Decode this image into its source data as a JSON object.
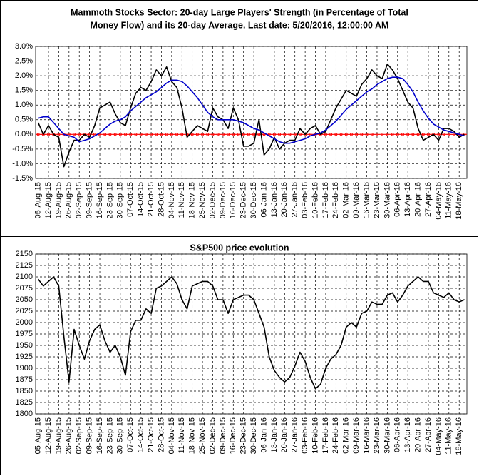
{
  "chart_data": [
    {
      "type": "line",
      "title_lines": [
        "Mammoth Stocks Sector: 20-day Large Players' Strength (in Percentage of Total",
        "Money Flow) and its 20-day Average. Last date: 5/20/2016, 12:00:00 AM"
      ],
      "categories": [
        "05-Aug-15",
        null,
        "12-Aug-15",
        null,
        "19-Aug-15",
        null,
        "26-Aug-15",
        null,
        "02-Sep-15",
        null,
        "09-Sep-15",
        null,
        "16-Sep-15",
        null,
        "23-Sep-15",
        null,
        "30-Sep-15",
        null,
        "07-Oct-15",
        null,
        "14-Oct-15",
        null,
        "21-Oct-15",
        null,
        "28-Oct-15",
        null,
        "04-Nov-15",
        null,
        "11-Nov-15",
        null,
        "18-Nov-15",
        null,
        "25-Nov-15",
        null,
        "02-Dec-15",
        null,
        "09-Dec-15",
        null,
        "16-Dec-15",
        null,
        "23-Dec-15",
        null,
        "30-Dec-15",
        null,
        "06-Jan-16",
        null,
        "13-Jan-16",
        null,
        "20-Jan-16",
        null,
        "27-Jan-16",
        null,
        "03-Feb-16",
        null,
        "10-Feb-16",
        null,
        "17-Feb-16",
        null,
        "24-Feb-16",
        null,
        "02-Mar-16",
        null,
        "09-Mar-16",
        null,
        "16-Mar-16",
        null,
        "23-Mar-16",
        null,
        "30-Mar-16",
        null,
        "06-Apr-16",
        null,
        "13-Apr-16",
        null,
        "20-Apr-16",
        null,
        "27-Apr-16",
        null,
        "04-May-16",
        null,
        "11-May-16",
        null,
        "18-May-16",
        null
      ],
      "series": [
        {
          "color": "#000000",
          "values": [
            0.4,
            0.0,
            0.3,
            0.0,
            -0.1,
            -1.1,
            -0.6,
            -0.2,
            -0.2,
            0.0,
            -0.1,
            0.3,
            0.9,
            1.0,
            1.1,
            0.7,
            0.4,
            0.3,
            0.9,
            1.4,
            1.6,
            1.5,
            1.8,
            2.2,
            2.0,
            2.3,
            1.8,
            1.6,
            0.9,
            -0.1,
            0.1,
            0.3,
            0.2,
            0.1,
            0.9,
            0.6,
            0.5,
            0.2,
            0.9,
            0.5,
            -0.4,
            -0.4,
            -0.3,
            0.5,
            -0.7,
            -0.5,
            -0.1,
            -0.5,
            -0.3,
            -0.2,
            -0.2,
            0.2,
            0.0,
            0.2,
            0.3,
            0.0,
            0.1,
            0.5,
            0.9,
            1.2,
            1.5,
            1.4,
            1.3,
            1.7,
            1.9,
            2.2,
            2.0,
            1.9,
            2.4,
            2.2,
            1.9,
            1.5,
            1.1,
            0.9,
            0.2,
            -0.2,
            -0.1,
            0.0,
            -0.2,
            0.2,
            0.2,
            0.1,
            -0.1,
            0.0
          ]
        },
        {
          "color": "#0000cc",
          "values": [
            0.55,
            0.6,
            0.6,
            0.4,
            0.2,
            0.0,
            -0.05,
            -0.1,
            -0.25,
            -0.2,
            -0.15,
            -0.05,
            0.05,
            0.2,
            0.35,
            0.45,
            0.5,
            0.6,
            0.8,
            0.95,
            1.1,
            1.25,
            1.35,
            1.45,
            1.6,
            1.75,
            1.85,
            1.85,
            1.8,
            1.65,
            1.45,
            1.25,
            1.0,
            0.75,
            0.6,
            0.5,
            0.5,
            0.5,
            0.5,
            0.45,
            0.4,
            0.3,
            0.2,
            0.15,
            0.05,
            -0.05,
            -0.15,
            -0.25,
            -0.3,
            -0.3,
            -0.25,
            -0.2,
            -0.15,
            -0.05,
            0.0,
            0.05,
            0.15,
            0.3,
            0.45,
            0.65,
            0.85,
            1.0,
            1.15,
            1.3,
            1.45,
            1.55,
            1.7,
            1.8,
            1.9,
            1.95,
            1.95,
            1.9,
            1.7,
            1.45,
            1.1,
            0.8,
            0.55,
            0.35,
            0.25,
            0.15,
            0.1,
            0.05,
            0.0,
            -0.05
          ]
        }
      ],
      "reference_line": {
        "value": 0,
        "color": "#ff0000"
      },
      "ylim": [
        -1.5,
        3.0
      ],
      "yticks": [
        {
          "value": -1.5,
          "label": "-1.5%"
        },
        {
          "value": -1.0,
          "label": "-1.0%"
        },
        {
          "value": -0.5,
          "label": "-0.5%"
        },
        {
          "value": 0.0,
          "label": "0.0%"
        },
        {
          "value": 0.5,
          "label": "0.5%"
        },
        {
          "value": 1.0,
          "label": "1.0%"
        },
        {
          "value": 1.5,
          "label": "1.5%"
        },
        {
          "value": 2.0,
          "label": "2.0%"
        },
        {
          "value": 2.5,
          "label": "2.5%"
        },
        {
          "value": 3.0,
          "label": "3.0%"
        }
      ],
      "grid": true
    },
    {
      "type": "line",
      "title_lines": [
        "S&P500 price evolution"
      ],
      "categories": [
        "05-Aug-15",
        null,
        "12-Aug-15",
        null,
        "19-Aug-15",
        null,
        "26-Aug-15",
        null,
        "02-Sep-15",
        null,
        "09-Sep-15",
        null,
        "16-Sep-15",
        null,
        "23-Sep-15",
        null,
        "30-Sep-15",
        null,
        "07-Oct-15",
        null,
        "14-Oct-15",
        null,
        "21-Oct-15",
        null,
        "28-Oct-15",
        null,
        "04-Nov-15",
        null,
        "11-Nov-15",
        null,
        "18-Nov-15",
        null,
        "25-Nov-15",
        null,
        "02-Dec-15",
        null,
        "09-Dec-15",
        null,
        "16-Dec-15",
        null,
        "23-Dec-15",
        null,
        "30-Dec-15",
        null,
        "06-Jan-16",
        null,
        "13-Jan-16",
        null,
        "20-Jan-16",
        null,
        "27-Jan-16",
        null,
        "03-Feb-16",
        null,
        "10-Feb-16",
        null,
        "17-Feb-16",
        null,
        "24-Feb-16",
        null,
        "02-Mar-16",
        null,
        "09-Mar-16",
        null,
        "16-Mar-16",
        null,
        "23-Mar-16",
        null,
        "30-Mar-16",
        null,
        "06-Apr-16",
        null,
        "13-Apr-16",
        null,
        "20-Apr-16",
        null,
        "27-Apr-16",
        null,
        "04-May-16",
        null,
        "11-May-16",
        null,
        "18-May-16",
        null
      ],
      "series": [
        {
          "color": "#000000",
          "values": [
            2095,
            2080,
            2090,
            2100,
            2080,
            1970,
            1870,
            1985,
            1950,
            1920,
            1960,
            1985,
            1995,
            1960,
            1935,
            1950,
            1925,
            1885,
            1980,
            2005,
            2005,
            2030,
            2020,
            2075,
            2080,
            2090,
            2100,
            2085,
            2050,
            2030,
            2080,
            2085,
            2090,
            2090,
            2080,
            2050,
            2050,
            2020,
            2050,
            2055,
            2060,
            2060,
            2050,
            2020,
            1990,
            1925,
            1895,
            1880,
            1870,
            1880,
            1905,
            1935,
            1915,
            1880,
            1855,
            1865,
            1900,
            1920,
            1930,
            1950,
            1990,
            2000,
            1990,
            2020,
            2025,
            2045,
            2040,
            2040,
            2060,
            2065,
            2045,
            2060,
            2080,
            2090,
            2100,
            2090,
            2090,
            2065,
            2060,
            2055,
            2065,
            2050,
            2045,
            2050
          ]
        }
      ],
      "ylim": [
        1800,
        2150
      ],
      "yticks": [
        1800,
        1825,
        1850,
        1875,
        1900,
        1925,
        1950,
        1975,
        2000,
        2025,
        2050,
        2075,
        2100,
        2125,
        2150
      ],
      "grid": true
    }
  ]
}
